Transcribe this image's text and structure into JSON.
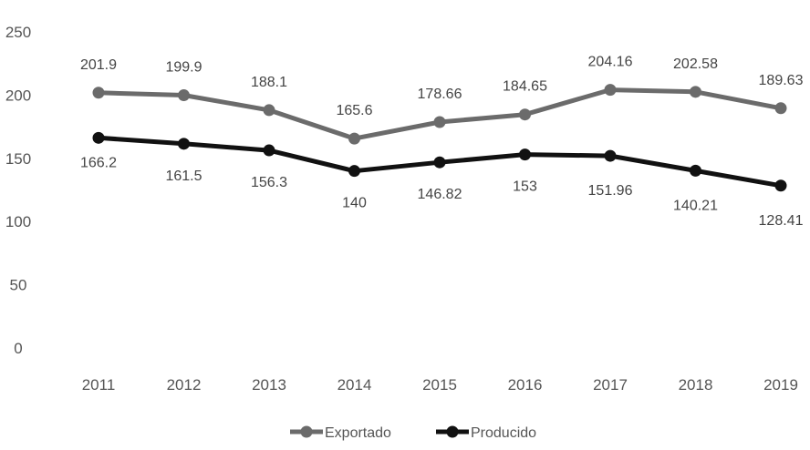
{
  "chart_data": {
    "type": "line",
    "title": "",
    "xlabel": "",
    "ylabel": "",
    "categories": [
      "2011",
      "2012",
      "2013",
      "2014",
      "2015",
      "2016",
      "2017",
      "2018",
      "2019"
    ],
    "ylim": [
      0,
      250
    ],
    "yticks": [
      0,
      50,
      100,
      150,
      200,
      250
    ],
    "grid": false,
    "legend_position": "bottom",
    "series": [
      {
        "name": "Exportado",
        "color": "#6b6b6b",
        "values": [
          201.9,
          199.9,
          188.1,
          165.6,
          178.66,
          184.65,
          204.16,
          202.58,
          189.63
        ],
        "labels": [
          "201.9",
          "199.9",
          "188.1",
          "165.6",
          "178.66",
          "184.65",
          "204.16",
          "202.58",
          "189.63"
        ]
      },
      {
        "name": "Producido",
        "color": "#111111",
        "values": [
          166.2,
          161.5,
          156.3,
          140,
          146.82,
          153,
          151.96,
          140.21,
          128.41
        ],
        "labels": [
          "166.2",
          "161.5",
          "156.3",
          "140",
          "146.82",
          "153",
          "151.96",
          "140.21",
          "128.41"
        ]
      }
    ]
  }
}
